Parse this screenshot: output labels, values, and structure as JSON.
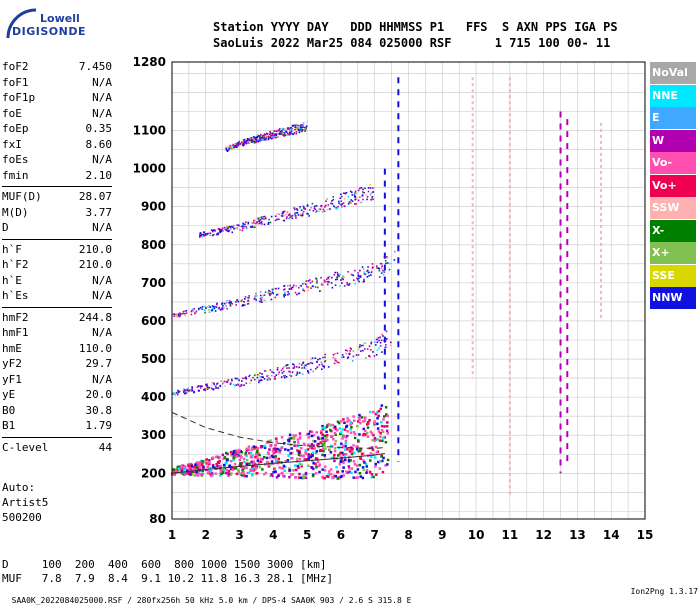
{
  "logo": {
    "line1": "Lowell",
    "line2": "DIGISONDE"
  },
  "header": {
    "row1": "Station YYYY DAY   DDD HHMMSS P1   FFS  S AXN PPS IGA PS",
    "row2": "SaoLuis 2022 Mar25 084 025000 RSF      1 715 100 00- 11"
  },
  "params": [
    [
      {
        "name": "foF2",
        "value": "7.450"
      },
      {
        "name": "foF1",
        "value": "N/A"
      },
      {
        "name": "foF1p",
        "value": "N/A"
      },
      {
        "name": "foE",
        "value": "N/A"
      },
      {
        "name": "foEp",
        "value": "0.35"
      },
      {
        "name": "fxI",
        "value": "8.60"
      },
      {
        "name": "foEs",
        "value": "N/A"
      },
      {
        "name": "fmin",
        "value": "2.10"
      }
    ],
    [
      {
        "name": "MUF(D)",
        "value": "28.07"
      },
      {
        "name": "M(D)",
        "value": "3.77"
      },
      {
        "name": "D",
        "value": "N/A"
      }
    ],
    [
      {
        "name": "h`F",
        "value": "210.0"
      },
      {
        "name": "h`F2",
        "value": "210.0"
      },
      {
        "name": "h`E",
        "value": "N/A"
      },
      {
        "name": "h`Es",
        "value": "N/A"
      }
    ],
    [
      {
        "name": "hmF2",
        "value": "244.8"
      },
      {
        "name": "hmF1",
        "value": "N/A"
      },
      {
        "name": "hmE",
        "value": "110.0"
      },
      {
        "name": "yF2",
        "value": "29.7"
      },
      {
        "name": "yF1",
        "value": "N/A"
      },
      {
        "name": "yE",
        "value": "20.0"
      },
      {
        "name": "B0",
        "value": "30.8"
      },
      {
        "name": "B1",
        "value": "1.79"
      }
    ],
    [
      {
        "name": "C-level",
        "value": "44"
      }
    ]
  ],
  "auto": {
    "line1": "Auto:",
    "line2": "Artist5",
    "line3": "500200"
  },
  "legend": [
    {
      "label": "NoVal",
      "color": "#a8a8a8"
    },
    {
      "label": "NNE",
      "color": "#00e8ff"
    },
    {
      "label": "E",
      "color": "#40a8ff"
    },
    {
      "label": "W",
      "color": "#b000b0"
    },
    {
      "label": "Vo-",
      "color": "#ff50b0"
    },
    {
      "label": "Vo+",
      "color": "#f00050"
    },
    {
      "label": "SSW",
      "color": "#ffb0b0"
    },
    {
      "label": "X-",
      "color": "#008000"
    },
    {
      "label": "X+",
      "color": "#80c050"
    },
    {
      "label": "SSE",
      "color": "#d8d800"
    },
    {
      "label": "NNW",
      "color": "#1010e0"
    }
  ],
  "dtable": {
    "row1": "D     100  200  400  600  800 1000 1500 3000 [km]",
    "row2": "MUF   7.8  7.9  8.4  9.1 10.2 11.8 16.3 28.1 [MHz]"
  },
  "footer": {
    "left": "SAA0K_2022084025000.RSF / 280fx256h 50 kHz 5.0 km / DPS-4 SAA0K 903 / 2.6 S 315.8 E",
    "right": "Ion2Png 1.3.17"
  },
  "chart_data": {
    "type": "scatter",
    "x_ticks": [
      1,
      2,
      3,
      4,
      5,
      6,
      7,
      8,
      9,
      10,
      11,
      12,
      13,
      14,
      15
    ],
    "y_ticks": [
      80,
      200,
      300,
      400,
      500,
      600,
      700,
      800,
      900,
      1000,
      1100,
      1280
    ],
    "xlim": [
      1,
      15
    ],
    "ylim": [
      80,
      1280
    ],
    "grid": true,
    "traces": [
      {
        "name": "O-trace",
        "x": [
          1.0,
          2.0,
          3.0,
          4.0,
          5.0,
          6.0,
          7.0,
          7.4
        ],
        "y": [
          205,
          215,
          228,
          240,
          250,
          262,
          280,
          300
        ]
      },
      {
        "name": "2-hop",
        "x": [
          1.0,
          2.0,
          3.0,
          4.0,
          5.0,
          6.0,
          7.0,
          7.5
        ],
        "y": [
          410,
          425,
          440,
          460,
          480,
          505,
          530,
          560
        ]
      },
      {
        "name": "3-hop",
        "x": [
          1.0,
          2.0,
          3.0,
          4.0,
          5.0,
          6.0,
          7.0,
          7.6
        ],
        "y": [
          615,
          630,
          650,
          670,
          690,
          710,
          730,
          760
        ]
      },
      {
        "name": "4-hop",
        "x": [
          1.8,
          3.0,
          4.0,
          5.0,
          6.0,
          7.0
        ],
        "y": [
          825,
          845,
          870,
          890,
          915,
          940
        ]
      },
      {
        "name": "5-hop",
        "x": [
          2.6,
          3.0,
          4.0,
          5.0
        ],
        "y": [
          1050,
          1065,
          1090,
          1110
        ]
      }
    ],
    "model_curves": [
      {
        "x": [
          1.0,
          2.0,
          3.0,
          4.0,
          5.0,
          6.0,
          7.0,
          7.3
        ],
        "y": [
          200,
          210,
          218,
          226,
          233,
          240,
          248,
          252
        ]
      },
      {
        "x": [
          1.0,
          2.0,
          3.0,
          4.0,
          5.0,
          6.0,
          7.0,
          7.3
        ],
        "y": [
          360,
          320,
          295,
          280,
          272,
          268,
          265,
          268
        ]
      }
    ],
    "vertical_markers": [
      {
        "x": 7.3,
        "y": [
          420,
          1000
        ],
        "color": "#1010e0"
      },
      {
        "x": 7.7,
        "y": [
          230,
          1240
        ],
        "color": "#1010e0"
      },
      {
        "x": 9.9,
        "y": [
          450,
          1240
        ],
        "color": "#ffb0b0"
      },
      {
        "x": 11.0,
        "y": [
          140,
          1240
        ],
        "color": "#ffb0b0"
      },
      {
        "x": 12.5,
        "y": [
          200,
          1150
        ],
        "color": "#b000b0"
      },
      {
        "x": 12.7,
        "y": [
          230,
          1130
        ],
        "color": "#b000b0"
      },
      {
        "x": 13.7,
        "y": [
          600,
          1120
        ],
        "color": "#ffb0b0"
      }
    ]
  }
}
